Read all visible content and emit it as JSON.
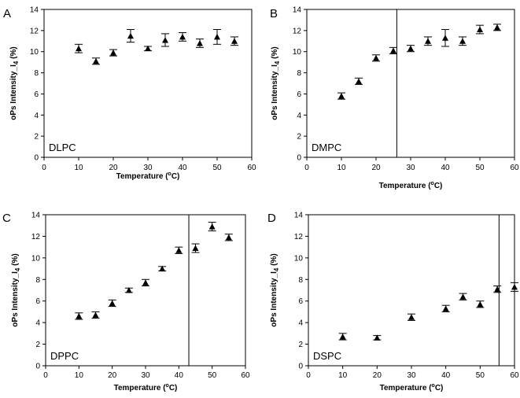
{
  "chart_data": [
    {
      "panel": "A",
      "type": "scatter",
      "label": "DLPC",
      "ylabel": "oPs Intensity_I",
      "ylabel_sub": "4",
      "ylabel_unit": " (%)",
      "xlabel": "Temperature (",
      "xlabel_sup": "o",
      "xlabel_unit": "C)",
      "xlim": [
        0,
        60
      ],
      "ylim": [
        0,
        14
      ],
      "xticks": [
        0,
        10,
        20,
        30,
        40,
        50,
        60
      ],
      "yticks": [
        0,
        2,
        4,
        6,
        8,
        10,
        12,
        14
      ],
      "transition": null,
      "points": [
        {
          "x": 10,
          "y": 10.3,
          "err": 0.4
        },
        {
          "x": 15,
          "y": 9.1,
          "err": 0.3
        },
        {
          "x": 20,
          "y": 9.9,
          "err": 0.3
        },
        {
          "x": 25,
          "y": 11.5,
          "err": 0.6
        },
        {
          "x": 30,
          "y": 10.3,
          "err": 0.2
        },
        {
          "x": 35,
          "y": 11.1,
          "err": 0.6
        },
        {
          "x": 40,
          "y": 11.4,
          "err": 0.4
        },
        {
          "x": 45,
          "y": 10.8,
          "err": 0.4
        },
        {
          "x": 50,
          "y": 11.4,
          "err": 0.7
        },
        {
          "x": 55,
          "y": 11.0,
          "err": 0.4
        }
      ]
    },
    {
      "panel": "B",
      "type": "scatter",
      "label": "DMPC",
      "ylabel": "oPs Intensity_I",
      "ylabel_sub": "4",
      "ylabel_unit": " (%)",
      "xlabel": "Temperature (",
      "xlabel_sup": "o",
      "xlabel_unit": "C)",
      "xlim": [
        0,
        60
      ],
      "ylim": [
        0,
        14
      ],
      "xticks": [
        0,
        10,
        20,
        30,
        40,
        50,
        60
      ],
      "yticks": [
        0,
        2,
        4,
        6,
        8,
        10,
        12,
        14
      ],
      "transition": 26,
      "points": [
        {
          "x": 10,
          "y": 5.8,
          "err": 0.3
        },
        {
          "x": 15,
          "y": 7.2,
          "err": 0.3
        },
        {
          "x": 20,
          "y": 9.4,
          "err": 0.3
        },
        {
          "x": 25,
          "y": 10.1,
          "err": 0.3
        },
        {
          "x": 30,
          "y": 10.3,
          "err": 0.3
        },
        {
          "x": 35,
          "y": 11.0,
          "err": 0.4
        },
        {
          "x": 40,
          "y": 11.3,
          "err": 0.8
        },
        {
          "x": 45,
          "y": 11.0,
          "err": 0.4
        },
        {
          "x": 50,
          "y": 12.1,
          "err": 0.4
        },
        {
          "x": 55,
          "y": 12.3,
          "err": 0.3
        }
      ]
    },
    {
      "panel": "C",
      "type": "scatter",
      "label": "DPPC",
      "ylabel": "oPs Intensity_I",
      "ylabel_sub": "4",
      "ylabel_unit": " (%)",
      "xlabel": "Temperature (",
      "xlabel_sup": "o",
      "xlabel_unit": "C)",
      "xlim": [
        0,
        60
      ],
      "ylim": [
        0,
        14
      ],
      "xticks": [
        0,
        10,
        20,
        30,
        40,
        50,
        60
      ],
      "yticks": [
        0,
        2,
        4,
        6,
        8,
        10,
        12,
        14
      ],
      "transition": 43,
      "points": [
        {
          "x": 10,
          "y": 4.6,
          "err": 0.3
        },
        {
          "x": 15,
          "y": 4.7,
          "err": 0.3
        },
        {
          "x": 20,
          "y": 5.8,
          "err": 0.3
        },
        {
          "x": 25,
          "y": 7.0,
          "err": 0.2
        },
        {
          "x": 30,
          "y": 7.7,
          "err": 0.3
        },
        {
          "x": 35,
          "y": 9.0,
          "err": 0.2
        },
        {
          "x": 40,
          "y": 10.7,
          "err": 0.3
        },
        {
          "x": 45,
          "y": 10.9,
          "err": 0.4
        },
        {
          "x": 50,
          "y": 12.9,
          "err": 0.4
        },
        {
          "x": 55,
          "y": 11.9,
          "err": 0.3
        }
      ]
    },
    {
      "panel": "D",
      "type": "scatter",
      "label": "DSPC",
      "ylabel": "oPs Intensity_I",
      "ylabel_sub": "4",
      "ylabel_unit": " (%)",
      "xlabel": "Temperature (",
      "xlabel_sup": "o",
      "xlabel_unit": "C)",
      "xlim": [
        0,
        60
      ],
      "ylim": [
        0,
        14
      ],
      "xticks": [
        0,
        10,
        20,
        30,
        40,
        50,
        60
      ],
      "yticks": [
        0,
        2,
        4,
        6,
        8,
        10,
        12,
        14
      ],
      "transition": 55.5,
      "points": [
        {
          "x": 10,
          "y": 2.7,
          "err": 0.3
        },
        {
          "x": 20,
          "y": 2.6,
          "err": 0.2
        },
        {
          "x": 30,
          "y": 4.5,
          "err": 0.3
        },
        {
          "x": 40,
          "y": 5.3,
          "err": 0.3
        },
        {
          "x": 45,
          "y": 6.4,
          "err": 0.3
        },
        {
          "x": 50,
          "y": 5.7,
          "err": 0.3
        },
        {
          "x": 55,
          "y": 7.1,
          "err": 0.3
        },
        {
          "x": 60,
          "y": 7.3,
          "err": 0.4
        }
      ]
    }
  ]
}
